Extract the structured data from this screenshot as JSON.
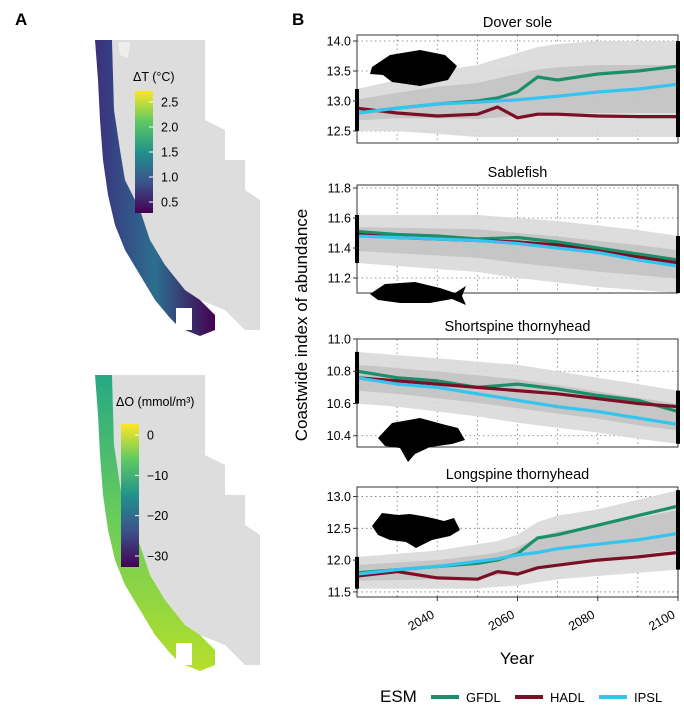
{
  "panel_labels": {
    "a": "A",
    "b": "B"
  },
  "colors": {
    "GFDL": "#1b8f6a",
    "HADL": "#7b0f26",
    "IPSL": "#35c3f0",
    "map_land": "#dddddd",
    "band_outer": "#d9d9d9",
    "band_inner": "#bcbcbc"
  },
  "maps": [
    {
      "legend_title": "ΔT (°C)",
      "colorbar_ticks": [
        "2.5",
        "2.0",
        "1.5",
        "1.0",
        "0.5"
      ],
      "colormap": "viridis"
    },
    {
      "legend_title": "ΔO (mmol/m³)",
      "colorbar_ticks": [
        "0",
        "−10",
        "−20",
        "−30"
      ],
      "colormap": "viridis"
    }
  ],
  "chart_data": [
    {
      "type": "line",
      "title": "Dover sole",
      "xlim": [
        2020,
        2100
      ],
      "ylim": [
        12.3,
        14.1
      ],
      "yticks": [
        "12.5",
        "13.0",
        "13.5",
        "14.0"
      ],
      "yticks_values": [
        12.5,
        13.0,
        13.5,
        14.0
      ],
      "x": [
        2020,
        2030,
        2040,
        2050,
        2055,
        2060,
        2065,
        2070,
        2080,
        2090,
        2100
      ],
      "series": [
        {
          "name": "GFDL",
          "values": [
            12.8,
            12.88,
            12.95,
            13.0,
            13.05,
            13.15,
            13.4,
            13.35,
            13.45,
            13.5,
            13.58
          ]
        },
        {
          "name": "HADL",
          "values": [
            12.88,
            12.8,
            12.75,
            12.78,
            12.9,
            12.72,
            12.78,
            12.78,
            12.75,
            12.74,
            12.74
          ]
        },
        {
          "name": "IPSL",
          "values": [
            12.8,
            12.88,
            12.95,
            12.98,
            13.0,
            13.02,
            13.05,
            13.08,
            13.15,
            13.2,
            13.28
          ]
        }
      ],
      "band_low": [
        12.5,
        12.5,
        12.45,
        12.4,
        12.4,
        12.4,
        12.4,
        12.4,
        12.4,
        12.4,
        12.4
      ],
      "band_high": [
        13.2,
        13.35,
        13.5,
        13.6,
        13.7,
        13.8,
        13.9,
        13.95,
        14.0,
        14.0,
        14.0
      ]
    },
    {
      "type": "line",
      "title": "Sablefish",
      "xlim": [
        2020,
        2100
      ],
      "ylim": [
        11.1,
        11.82
      ],
      "yticks": [
        "11.2",
        "11.4",
        "11.6",
        "11.8"
      ],
      "yticks_values": [
        11.2,
        11.4,
        11.6,
        11.8
      ],
      "x": [
        2020,
        2030,
        2040,
        2050,
        2060,
        2070,
        2080,
        2090,
        2100
      ],
      "series": [
        {
          "name": "GFDL",
          "values": [
            11.51,
            11.49,
            11.48,
            11.46,
            11.47,
            11.44,
            11.4,
            11.36,
            11.32
          ]
        },
        {
          "name": "HADL",
          "values": [
            11.49,
            11.47,
            11.46,
            11.45,
            11.44,
            11.42,
            11.38,
            11.34,
            11.3
          ]
        },
        {
          "name": "IPSL",
          "values": [
            11.48,
            11.47,
            11.46,
            11.45,
            11.43,
            11.4,
            11.37,
            11.32,
            11.28
          ]
        }
      ],
      "band_low": [
        11.3,
        11.28,
        11.26,
        11.24,
        11.2,
        11.17,
        11.14,
        11.12,
        11.1
      ],
      "band_high": [
        11.62,
        11.62,
        11.62,
        11.62,
        11.6,
        11.58,
        11.55,
        11.52,
        11.48
      ]
    },
    {
      "type": "line",
      "title": "Shortspine thornyhead",
      "xlim": [
        2020,
        2100
      ],
      "ylim": [
        10.33,
        11.0
      ],
      "yticks": [
        "10.4",
        "10.6",
        "10.8",
        "11.0"
      ],
      "yticks_values": [
        10.4,
        10.6,
        10.8,
        11.0
      ],
      "x": [
        2020,
        2030,
        2040,
        2050,
        2060,
        2070,
        2080,
        2090,
        2100
      ],
      "series": [
        {
          "name": "GFDL",
          "values": [
            10.8,
            10.76,
            10.74,
            10.7,
            10.72,
            10.69,
            10.65,
            10.62,
            10.55
          ]
        },
        {
          "name": "HADL",
          "values": [
            10.76,
            10.74,
            10.72,
            10.7,
            10.68,
            10.66,
            10.63,
            10.6,
            10.58
          ]
        },
        {
          "name": "IPSL",
          "values": [
            10.76,
            10.72,
            10.7,
            10.66,
            10.62,
            10.58,
            10.55,
            10.51,
            10.47
          ]
        }
      ],
      "band_low": [
        10.6,
        10.58,
        10.55,
        10.52,
        10.48,
        10.45,
        10.42,
        10.38,
        10.35
      ],
      "band_high": [
        10.92,
        10.9,
        10.88,
        10.86,
        10.84,
        10.8,
        10.76,
        10.72,
        10.68
      ]
    },
    {
      "type": "line",
      "title": "Longspine thornyhead",
      "xlim": [
        2020,
        2100
      ],
      "ylim": [
        11.42,
        13.15
      ],
      "yticks": [
        "11.5",
        "12.0",
        "12.5",
        "13.0"
      ],
      "yticks_values": [
        11.5,
        12.0,
        12.5,
        13.0
      ],
      "xticks": [
        "2040",
        "2060",
        "2080",
        "2100"
      ],
      "xticks_values": [
        2040,
        2060,
        2080,
        2100
      ],
      "x": [
        2020,
        2030,
        2040,
        2050,
        2055,
        2060,
        2065,
        2070,
        2080,
        2090,
        2100
      ],
      "series": [
        {
          "name": "GFDL",
          "values": [
            11.8,
            11.85,
            11.9,
            11.95,
            12.0,
            12.1,
            12.35,
            12.4,
            12.55,
            12.7,
            12.85
          ]
        },
        {
          "name": "HADL",
          "values": [
            11.75,
            11.82,
            11.72,
            11.7,
            11.82,
            11.78,
            11.88,
            11.92,
            12.0,
            12.05,
            12.12
          ]
        },
        {
          "name": "IPSL",
          "values": [
            11.78,
            11.85,
            11.9,
            11.98,
            12.02,
            12.08,
            12.12,
            12.18,
            12.25,
            12.32,
            12.42
          ]
        }
      ],
      "band_low": [
        11.55,
        11.55,
        11.55,
        11.55,
        11.58,
        11.6,
        11.65,
        11.7,
        11.75,
        11.8,
        11.85
      ],
      "band_high": [
        12.05,
        12.1,
        12.15,
        12.25,
        12.3,
        12.4,
        12.6,
        12.7,
        12.8,
        12.95,
        13.1
      ]
    }
  ],
  "axis": {
    "xlabel": "Year",
    "ylabel": "Coastwide index of abundance"
  },
  "legend": {
    "title": "ESM",
    "items": [
      "GFDL",
      "HADL",
      "IPSL"
    ]
  }
}
